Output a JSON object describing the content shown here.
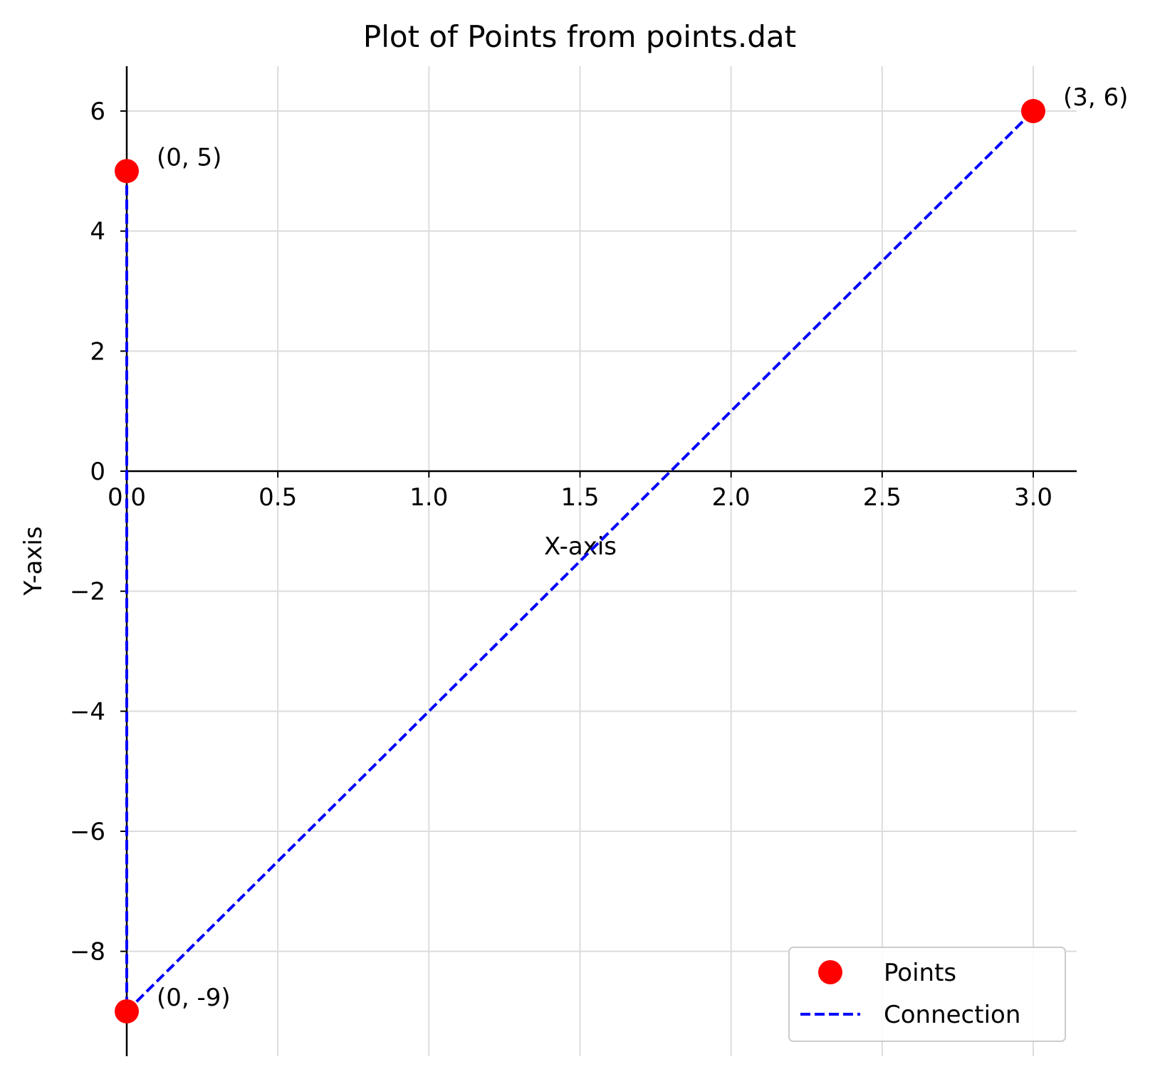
{
  "chart_data": {
    "type": "scatter",
    "title": "Plot of Points from points.dat",
    "xlabel": "X-axis",
    "ylabel": "Y-axis",
    "xlim": [
      0,
      3.15
    ],
    "ylim": [
      -9.75,
      6.75
    ],
    "xticks": [
      "0.0",
      "0.5",
      "1.0",
      "1.5",
      "2.0",
      "2.5",
      "3.0"
    ],
    "xtick_values": [
      0,
      0.5,
      1.0,
      1.5,
      2.0,
      2.5,
      3.0
    ],
    "yticks": [
      "−8",
      "−6",
      "−4",
      "−2",
      "0",
      "2",
      "4",
      "6"
    ],
    "ytick_values": [
      -8,
      -6,
      -4,
      -2,
      0,
      2,
      4,
      6
    ],
    "grid": true,
    "legend_position": "bottom-right",
    "series": [
      {
        "name": "Points",
        "kind": "scatter",
        "color": "#ff0000",
        "points": [
          {
            "x": 0,
            "y": 5,
            "label": "(0, 5)"
          },
          {
            "x": 0,
            "y": -9,
            "label": "(0, -9)"
          },
          {
            "x": 3,
            "y": 6,
            "label": "(3, 6)"
          }
        ]
      },
      {
        "name": "Connection",
        "kind": "line",
        "style": "dashed",
        "color": "#0000ff",
        "x": [
          0,
          0,
          3
        ],
        "y": [
          5,
          -9,
          6
        ]
      }
    ]
  }
}
